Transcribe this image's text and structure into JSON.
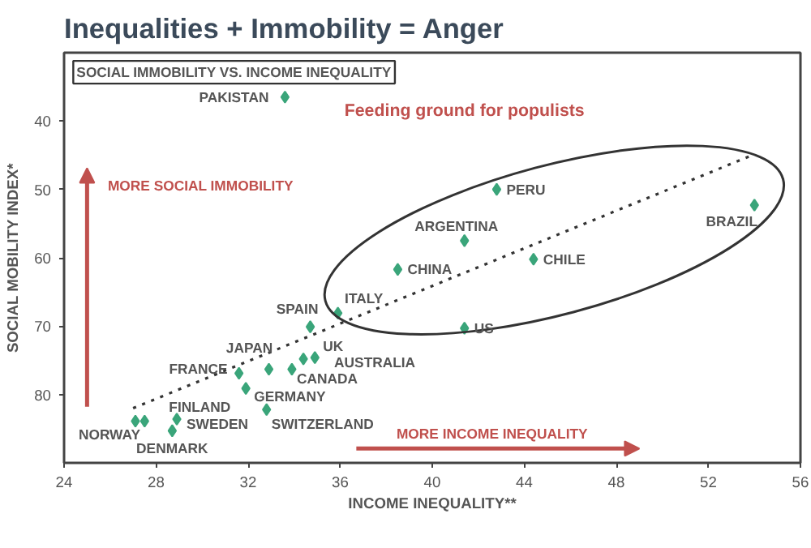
{
  "chart_data": {
    "type": "scatter",
    "title": "Inequalities + Immobility = Anger",
    "subtitle": "SOCIAL IMMOBILITY VS. INCOME INEQUALITY",
    "xlabel": "INCOME INEQUALITY**",
    "ylabel": "SOCIAL MOBILITY INDEX*",
    "xlim": [
      24,
      56
    ],
    "xticks": [
      24,
      28,
      32,
      36,
      40,
      44,
      48,
      52,
      56
    ],
    "ylim": [
      90,
      30
    ],
    "yticks": [
      40,
      50,
      60,
      70,
      80
    ],
    "grid": false,
    "series": [
      {
        "marker": "diamond",
        "color": "#3aa57a",
        "x": [
          33.6,
          42.8,
          41.4,
          38.5,
          44.4,
          54.0,
          41.4,
          35.9,
          34.7,
          34.9,
          34.4,
          32.9,
          33.9,
          31.6,
          31.9,
          32.8,
          27.5,
          27.1,
          28.9,
          28.7
        ],
        "values": [
          36.5,
          50.0,
          57.5,
          61.7,
          60.2,
          52.3,
          70.3,
          68.1,
          70.1,
          74.6,
          74.8,
          76.3,
          76.3,
          76.9,
          79.1,
          82.2,
          83.9,
          83.9,
          83.6,
          85.3
        ]
      },
      {
        "type": "line",
        "color": "#333333",
        "line_style": "dotted",
        "x": [
          27.0,
          53.9
        ],
        "values": [
          82,
          45
        ]
      }
    ],
    "annotations": [
      "Feeding ground for populists",
      "MORE SOCIAL IMMOBILITY",
      "MORE INCOME INEQUALITY",
      {
        "text": "PAKISTAN",
        "x": 33.6,
        "y": 36.5
      },
      {
        "text": "PERU",
        "x": 42.8,
        "y": 50.0
      },
      {
        "text": "ARGENTINA",
        "x": 41.4,
        "y": 57.5
      },
      {
        "text": "CHINA",
        "x": 38.5,
        "y": 61.7
      },
      {
        "text": "CHILE",
        "x": 44.4,
        "y": 60.2
      },
      {
        "text": "BRAZIL",
        "x": 54.0,
        "y": 52.3
      },
      {
        "text": "US",
        "x": 41.4,
        "y": 70.3
      },
      {
        "text": "ITALY",
        "x": 35.9,
        "y": 68.1
      },
      {
        "text": "SPAIN",
        "x": 34.7,
        "y": 70.1
      },
      {
        "text": "UK",
        "x": 34.9,
        "y": 74.6
      },
      {
        "text": "AUSTRALIA",
        "x": 34.4,
        "y": 74.8
      },
      {
        "text": "JAPAN",
        "x": 32.9,
        "y": 76.3
      },
      {
        "text": "CANADA",
        "x": 33.9,
        "y": 76.3
      },
      {
        "text": "FRANCE",
        "x": 31.6,
        "y": 76.9
      },
      {
        "text": "GERMANY",
        "x": 31.9,
        "y": 79.1
      },
      {
        "text": "SWITZERLAND",
        "x": 32.8,
        "y": 82.2
      },
      {
        "text": "FINLAND",
        "x": 27.5,
        "y": 83.9
      },
      {
        "text": "NORWAY",
        "x": 27.1,
        "y": 83.9
      },
      {
        "text": "SWEDEN",
        "x": 28.9,
        "y": 83.6
      },
      {
        "text": "DENMARK",
        "x": 28.7,
        "y": 85.3
      }
    ]
  }
}
